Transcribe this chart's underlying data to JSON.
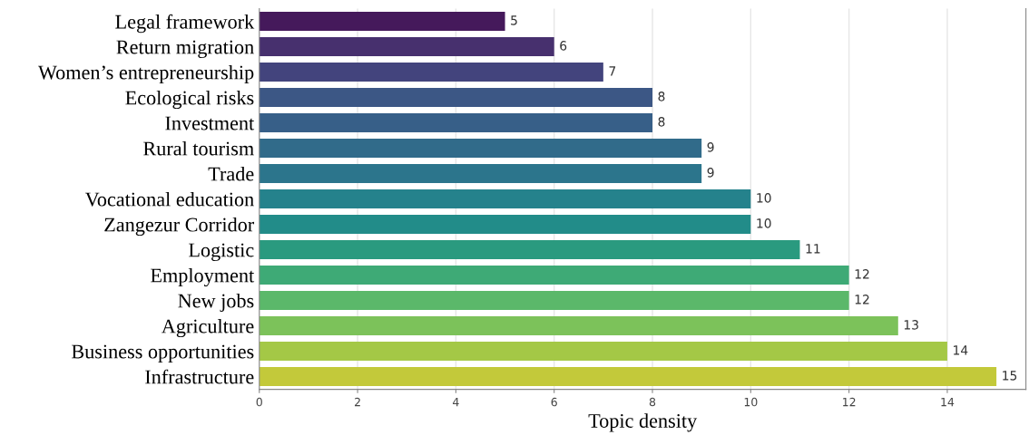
{
  "chart_data": {
    "type": "bar",
    "orientation": "horizontal",
    "xlabel": "Topic density",
    "categories": [
      "Legal framework",
      "Return migration",
      "Women’s entrepreneurship",
      "Ecological risks",
      "Investment",
      "Rural tourism",
      "Trade",
      "Vocational education",
      "Zangezur Corridor",
      "Logistic",
      "Employment",
      "New jobs",
      "Agriculture",
      "Business opportunities",
      "Infrastructure"
    ],
    "values": [
      5,
      6,
      7,
      8,
      8,
      9,
      9,
      10,
      10,
      11,
      12,
      12,
      13,
      14,
      15
    ],
    "colors": [
      "#45195b",
      "#47306e",
      "#43447d",
      "#3c5785",
      "#375f88",
      "#316b8a",
      "#2c758c",
      "#25828c",
      "#228c89",
      "#2a9a7f",
      "#3eaa76",
      "#5bb86a",
      "#7cc25a",
      "#a4c846",
      "#c3c93a"
    ],
    "xlim": [
      0,
      15.6
    ],
    "xticks": [
      0,
      2,
      4,
      6,
      8,
      10,
      12,
      14
    ],
    "grid": "x",
    "data_labels": true
  }
}
